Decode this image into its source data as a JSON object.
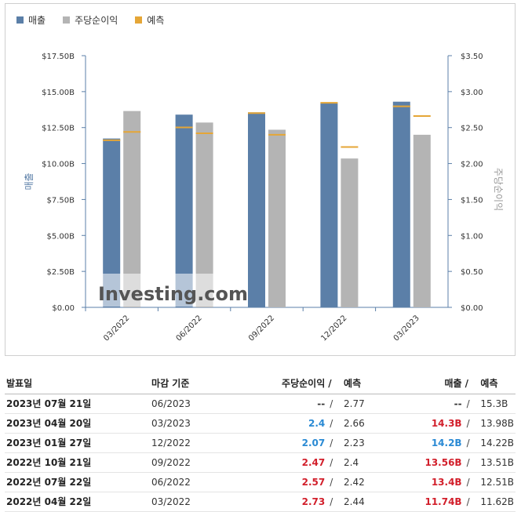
{
  "legend": [
    {
      "label": "매출",
      "color": "#5b7fa8"
    },
    {
      "label": "주당순이익",
      "color": "#b4b4b4"
    },
    {
      "label": "예측",
      "color": "#e5a637"
    }
  ],
  "chart_data": {
    "type": "bar",
    "categories": [
      "03/2022",
      "06/2022",
      "09/2022",
      "12/2022",
      "03/2023"
    ],
    "series": [
      {
        "name": "매출",
        "axis": "left",
        "values": [
          11.74,
          13.4,
          13.56,
          14.2,
          14.3
        ],
        "forecast": [
          11.62,
          12.51,
          13.51,
          14.22,
          13.98
        ],
        "color": "#5b7fa8"
      },
      {
        "name": "주당순이익",
        "axis": "right",
        "values": [
          2.73,
          2.57,
          2.47,
          2.07,
          2.4
        ],
        "forecast": [
          2.44,
          2.42,
          2.4,
          2.23,
          2.66
        ],
        "color": "#b4b4b4"
      }
    ],
    "forecast_color": "#e5a637",
    "ylabel_left": "매출",
    "ylabel_right": "주당순이익",
    "ylim_left": [
      0,
      17.5
    ],
    "ylim_right": [
      0,
      3.5
    ],
    "yticks_left": [
      "$0.00",
      "$2.50B",
      "$5.00B",
      "$7.50B",
      "$10.00B",
      "$12.50B",
      "$15.00B",
      "$17.50B"
    ],
    "yticks_right": [
      "$0.00",
      "$0.50",
      "$1.00",
      "$1.50",
      "$2.00",
      "$2.50",
      "$3.00",
      "$3.50"
    ],
    "watermark": "Investing.com"
  },
  "table": {
    "headers": {
      "date": "발표일",
      "period": "마감 기준",
      "eps": "주당순이익",
      "eps_fc": "예측",
      "rev": "매출",
      "rev_fc": "예측",
      "sep": "/"
    },
    "rows": [
      {
        "date": "2023년 07월 21일",
        "period": "06/2023",
        "eps": "--",
        "eps_color": "plain",
        "eps_fc": "2.77",
        "rev": "--",
        "rev_color": "plain",
        "rev_fc": "15.3B"
      },
      {
        "date": "2023년 04월 20일",
        "period": "03/2023",
        "eps": "2.4",
        "eps_color": "blue",
        "eps_fc": "2.66",
        "rev": "14.3B",
        "rev_color": "red",
        "rev_fc": "13.98B"
      },
      {
        "date": "2023년 01월 27일",
        "period": "12/2022",
        "eps": "2.07",
        "eps_color": "blue",
        "eps_fc": "2.23",
        "rev": "14.2B",
        "rev_color": "blue",
        "rev_fc": "14.22B"
      },
      {
        "date": "2022년 10월 21일",
        "period": "09/2022",
        "eps": "2.47",
        "eps_color": "red",
        "eps_fc": "2.4",
        "rev": "13.56B",
        "rev_color": "red",
        "rev_fc": "13.51B"
      },
      {
        "date": "2022년 07월 22일",
        "period": "06/2022",
        "eps": "2.57",
        "eps_color": "red",
        "eps_fc": "2.42",
        "rev": "13.4B",
        "rev_color": "red",
        "rev_fc": "12.51B"
      },
      {
        "date": "2022년 04월 22일",
        "period": "03/2022",
        "eps": "2.73",
        "eps_color": "red",
        "eps_fc": "2.44",
        "rev": "11.74B",
        "rev_color": "red",
        "rev_fc": "11.62B"
      }
    ]
  }
}
